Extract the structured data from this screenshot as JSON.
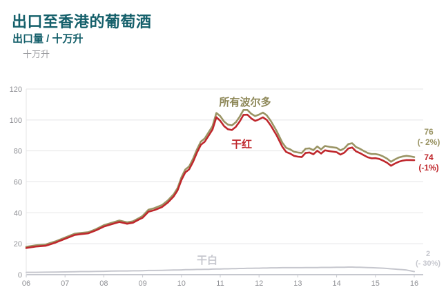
{
  "header": {
    "title": "出口至香港的葡萄酒",
    "subtitle": "出口量 / 十万升",
    "y_axis_unit": "十万升"
  },
  "colors": {
    "title_text": "#15606b",
    "axis_text": "#8f9095",
    "gridline": "#e4e4e6",
    "axis_line": "#c6c8cf",
    "bordeaux_line": "#9a9464",
    "red_line": "#bf272c",
    "white_line": "#c6c7ce"
  },
  "chart_data": {
    "type": "line",
    "title": "出口至香港的葡萄酒",
    "subtitle": "出口量 / 十万升",
    "ylabel": "十万升",
    "xlabel": "",
    "xlim": [
      2006,
      2016
    ],
    "ylim": [
      0,
      120
    ],
    "yticks": [
      0,
      20,
      40,
      60,
      80,
      100,
      120
    ],
    "xticks": {
      "values": [
        2006,
        2007,
        2008,
        2009,
        2010,
        2011,
        2012,
        2013,
        2014,
        2015,
        2016
      ],
      "labels": [
        "06",
        "07",
        "08",
        "09",
        "10",
        "11",
        "12",
        "13",
        "14",
        "15",
        "16"
      ]
    },
    "grid": "horizontal",
    "legend_position": "inline-annotations",
    "x": [
      2006.0,
      2006.25,
      2006.5,
      2006.75,
      2007.0,
      2007.25,
      2007.4,
      2007.6,
      2007.8,
      2008.0,
      2008.2,
      2008.4,
      2008.6,
      2008.75,
      2008.9,
      2009.0,
      2009.15,
      2009.3,
      2009.5,
      2009.65,
      2009.8,
      2009.9,
      2010.0,
      2010.1,
      2010.2,
      2010.3,
      2010.4,
      2010.5,
      2010.6,
      2010.7,
      2010.8,
      2010.9,
      2011.0,
      2011.1,
      2011.2,
      2011.3,
      2011.4,
      2011.5,
      2011.6,
      2011.7,
      2011.8,
      2011.9,
      2012.0,
      2012.1,
      2012.2,
      2012.3,
      2012.45,
      2012.6,
      2012.7,
      2012.8,
      2012.9,
      2013.0,
      2013.1,
      2013.2,
      2013.3,
      2013.4,
      2013.5,
      2013.6,
      2013.7,
      2013.85,
      2014.0,
      2014.1,
      2014.2,
      2014.3,
      2014.4,
      2014.5,
      2014.6,
      2014.7,
      2014.8,
      2014.9,
      2015.0,
      2015.1,
      2015.2,
      2015.3,
      2015.4,
      2015.5,
      2015.6,
      2015.7,
      2015.8,
      2015.9,
      2016.0
    ],
    "series": [
      {
        "name": "所有波尔多",
        "color": "#9a9464",
        "stroke_width": 2.6,
        "end_value": "76",
        "end_change": "(- 2%)",
        "values": [
          18,
          19,
          19.5,
          21.5,
          24,
          26.5,
          27,
          27.5,
          29.5,
          32,
          33.5,
          35,
          33.8,
          34.5,
          36.5,
          38,
          42,
          43,
          45,
          48,
          52,
          56,
          63,
          68,
          70,
          75,
          81,
          86,
          88,
          92,
          96,
          104.5,
          102.5,
          99,
          97,
          96.5,
          98.5,
          102,
          106.5,
          106.5,
          104,
          102.5,
          103.5,
          104.8,
          103,
          99.5,
          93,
          85.4,
          82,
          81,
          79.5,
          79,
          78.7,
          81.4,
          81.7,
          80.5,
          82.9,
          81,
          83.2,
          82.5,
          82,
          80.4,
          81.7,
          84.4,
          85,
          82.5,
          81.4,
          80,
          78.7,
          78,
          78,
          77.5,
          76.4,
          75,
          73,
          74.5,
          75.7,
          76.4,
          76.8,
          76.5,
          76
        ]
      },
      {
        "name": "干红",
        "color": "#bf272c",
        "stroke_width": 2.6,
        "end_value": "74",
        "end_change": "(-1%)",
        "values": [
          17.2,
          18.2,
          18.7,
          20.7,
          23.2,
          25.7,
          26.2,
          26.7,
          28.7,
          31.1,
          32.6,
          34.1,
          32.9,
          33.6,
          35.6,
          36.8,
          40.7,
          41.7,
          43.7,
          46.6,
          50.6,
          54.5,
          61.2,
          66.1,
          68.1,
          73,
          78.9,
          83.9,
          85.9,
          89.8,
          93.8,
          101.8,
          99.5,
          96,
          94,
          93.5,
          95.5,
          99,
          103.3,
          103.4,
          101,
          99.4,
          100.4,
          101.7,
          100,
          96.5,
          90.2,
          82.7,
          79.3,
          78.3,
          76.8,
          76.3,
          76,
          78.7,
          79,
          77.8,
          80.1,
          78.3,
          80.4,
          79.7,
          79.2,
          77.6,
          78.9,
          81.6,
          82.2,
          79.7,
          78.6,
          77.2,
          75.9,
          75.2,
          75.3,
          74.8,
          73.7,
          72.3,
          70.4,
          71.8,
          73,
          73.7,
          74.1,
          74.1,
          74
        ]
      },
      {
        "name": "干白",
        "color": "#c6c7ce",
        "stroke_width": 2,
        "end_value": "2",
        "end_change": "(- 30%)",
        "values": [
          1.5,
          1.5,
          1.6,
          1.7,
          1.8,
          1.9,
          2,
          2,
          2.1,
          2.2,
          2.3,
          2.4,
          2.4,
          2.5,
          2.5,
          2.6,
          2.7,
          2.7,
          2.8,
          2.9,
          3,
          3,
          3.1,
          3.2,
          3.2,
          3.3,
          3.4,
          3.4,
          3.5,
          3.5,
          3.6,
          3.7,
          3.7,
          3.8,
          3.8,
          3.9,
          3.9,
          4,
          4,
          4.1,
          4.1,
          4.2,
          4.2,
          4.3,
          4.3,
          4.4,
          4.4,
          4.5,
          4.5,
          4.5,
          4.5,
          4.5,
          4.5,
          4.6,
          4.6,
          4.6,
          4.6,
          4.7,
          4.7,
          4.7,
          4.8,
          4.8,
          4.8,
          4.9,
          4.9,
          4.8,
          4.8,
          4.7,
          4.6,
          4.5,
          4.4,
          4.3,
          4.2,
          4,
          3.8,
          3.6,
          3.4,
          3.2,
          3,
          2.5,
          2
        ]
      }
    ]
  }
}
